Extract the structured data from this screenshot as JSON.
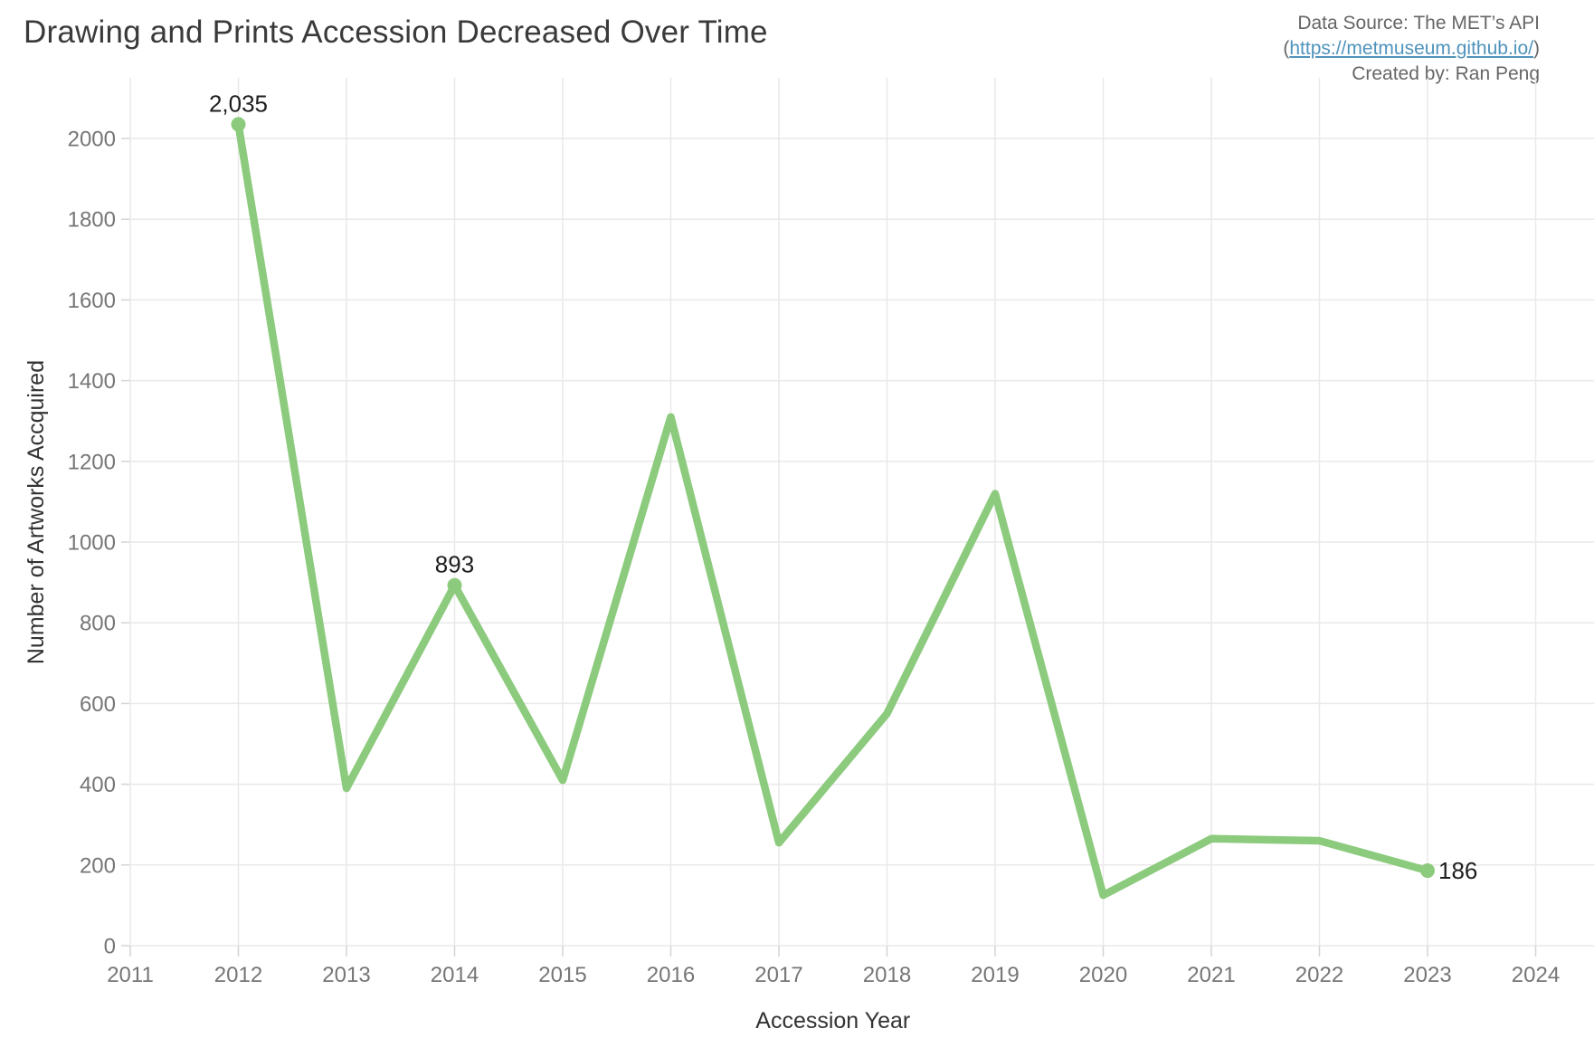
{
  "header": {
    "title": "Drawing and Prints Accession Decreased Over Time",
    "source_line": "Data Source: The MET’s API",
    "source_link_open": "(",
    "source_link": "https://metmuseum.github.io/",
    "source_link_close": ")",
    "created_by": "Created by: Ran Peng"
  },
  "chart_data": {
    "type": "line",
    "title": "Drawing and Prints Accession Decreased Over Time",
    "xlabel": "Accession Year",
    "ylabel": "Number of Artworks Accquired",
    "x": [
      2012,
      2013,
      2014,
      2015,
      2016,
      2017,
      2018,
      2019,
      2020,
      2021,
      2022,
      2023
    ],
    "values": [
      2035,
      390,
      893,
      410,
      1310,
      255,
      575,
      1120,
      125,
      265,
      260,
      186
    ],
    "x_ticks": [
      2011,
      2012,
      2013,
      2014,
      2015,
      2016,
      2017,
      2018,
      2019,
      2020,
      2021,
      2022,
      2023,
      2024
    ],
    "xlim": [
      2011,
      2024
    ],
    "ylim": [
      0,
      2150
    ],
    "y_tick_step": 200,
    "y_tick_max": 2000,
    "grid": true,
    "legend": "none",
    "point_labels": [
      {
        "x": 2012,
        "value": 2035,
        "label": "2,035",
        "placement": "above"
      },
      {
        "x": 2014,
        "value": 893,
        "label": "893",
        "placement": "above"
      },
      {
        "x": 2023,
        "value": 186,
        "label": "186",
        "placement": "right"
      }
    ],
    "colors": {
      "line": "#8ccb7d",
      "marker": "#8ccb7d",
      "grid": "#e9e9e9",
      "tick_mark": "#d4d4d4",
      "tick_label": "#767676",
      "axis_title": "#333333",
      "point_label": "#1e1e1e"
    }
  }
}
